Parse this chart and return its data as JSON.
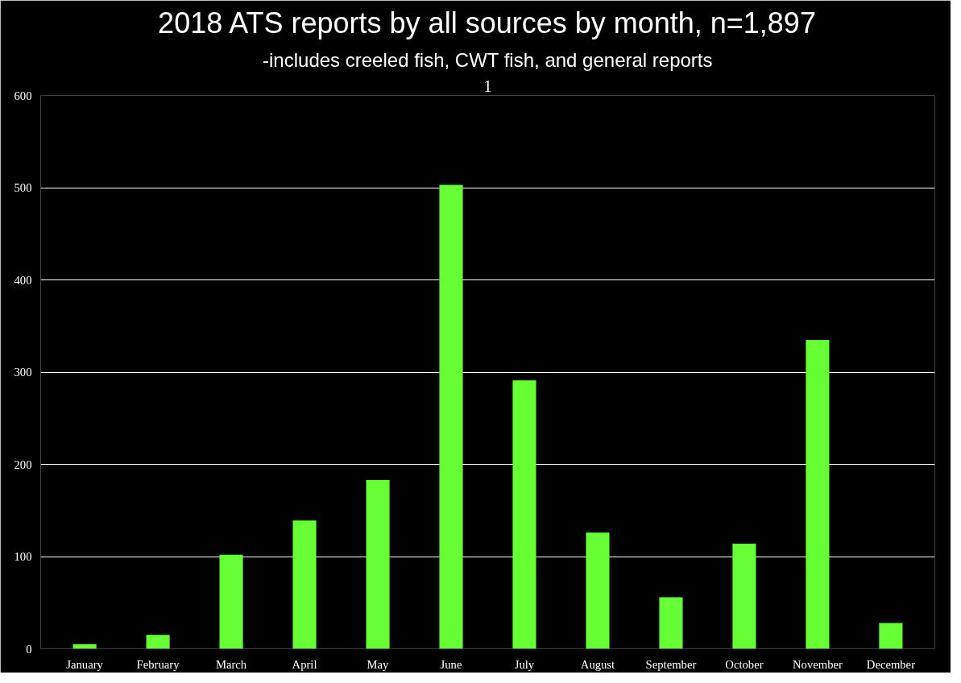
{
  "chart_data": {
    "type": "bar",
    "title": "2018 ATS reports by all sources by month, n=1,897",
    "subtitle": "-includes creeled fish, CWT fish, and general reports",
    "annotations": [
      "1"
    ],
    "categories": [
      "January",
      "February",
      "March",
      "April",
      "May",
      "June",
      "July",
      "August",
      "September",
      "October",
      "November",
      "December"
    ],
    "values": [
      5,
      15,
      102,
      139,
      183,
      503,
      291,
      126,
      56,
      114,
      335,
      28
    ],
    "color": "#66ff33",
    "ylim": [
      0,
      600
    ],
    "yticks": [
      0,
      100,
      200,
      300,
      400,
      500,
      600
    ],
    "grid": "y"
  }
}
